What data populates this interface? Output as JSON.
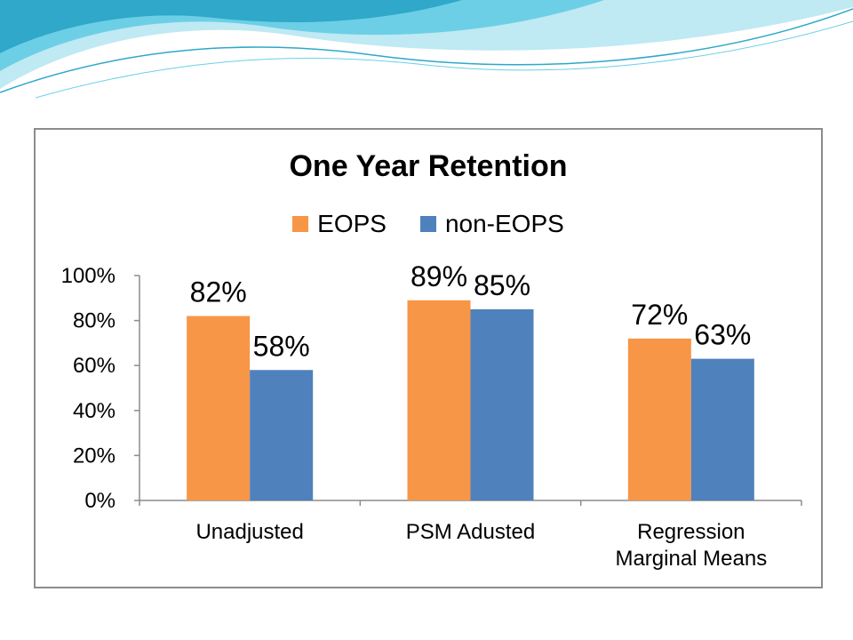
{
  "colors": {
    "eops": "#F79646",
    "non_eops": "#4F81BD",
    "wave_light": "#bfe9f3",
    "wave_mid": "#6ccfe6",
    "wave_dark": "#2fa8c9"
  },
  "chart_data": {
    "type": "bar",
    "title": "One Year Retention",
    "xlabel": "",
    "ylabel": "",
    "ylim": [
      0,
      100
    ],
    "yticks": [
      "0%",
      "20%",
      "40%",
      "60%",
      "80%",
      "100%"
    ],
    "categories": [
      [
        "Unadjusted"
      ],
      [
        "PSM Adusted"
      ],
      [
        "Regression",
        "Marginal Means"
      ]
    ],
    "series": [
      {
        "name": "EOPS",
        "values": [
          82,
          89,
          72
        ],
        "labels": [
          "82%",
          "89%",
          "72%"
        ]
      },
      {
        "name": "non-EOPS",
        "values": [
          58,
          85,
          63
        ],
        "labels": [
          "58%",
          "85%",
          "63%"
        ]
      }
    ],
    "legend_position": "top",
    "grid": false
  }
}
